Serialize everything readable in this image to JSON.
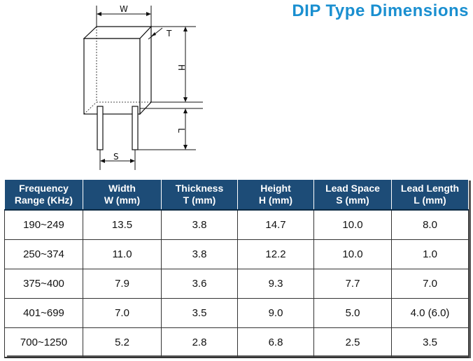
{
  "title": "DIP Type Dimensions",
  "diagram": {
    "width_label": "W",
    "thickness_label": "T",
    "height_label": "H",
    "lead_length_label": "L",
    "lead_space_label": "S"
  },
  "table": {
    "headers": [
      {
        "line1": "Frequency",
        "line2": "Range (KHz)"
      },
      {
        "line1": "Width",
        "line2": "W (mm)"
      },
      {
        "line1": "Thickness",
        "line2": "T (mm)"
      },
      {
        "line1": "Height",
        "line2": "H (mm)"
      },
      {
        "line1": "Lead Space",
        "line2": "S (mm)"
      },
      {
        "line1": "Lead Length",
        "line2": "L (mm)"
      }
    ],
    "rows": [
      [
        "190~249",
        "13.5",
        "3.8",
        "14.7",
        "10.0",
        "8.0"
      ],
      [
        "250~374",
        "11.0",
        "3.8",
        "12.2",
        "10.0",
        "1.0"
      ],
      [
        "375~400",
        "7.9",
        "3.6",
        "9.3",
        "7.7",
        "7.0"
      ],
      [
        "401~699",
        "7.0",
        "3.5",
        "9.0",
        "5.0",
        "4.0 (6.0)"
      ],
      [
        "700~1250",
        "5.2",
        "2.8",
        "6.8",
        "2.5",
        "3.5"
      ]
    ]
  },
  "colors": {
    "title": "#1a8fd0",
    "header_bg": "#1d4c77",
    "header_text": "#ffffff"
  }
}
